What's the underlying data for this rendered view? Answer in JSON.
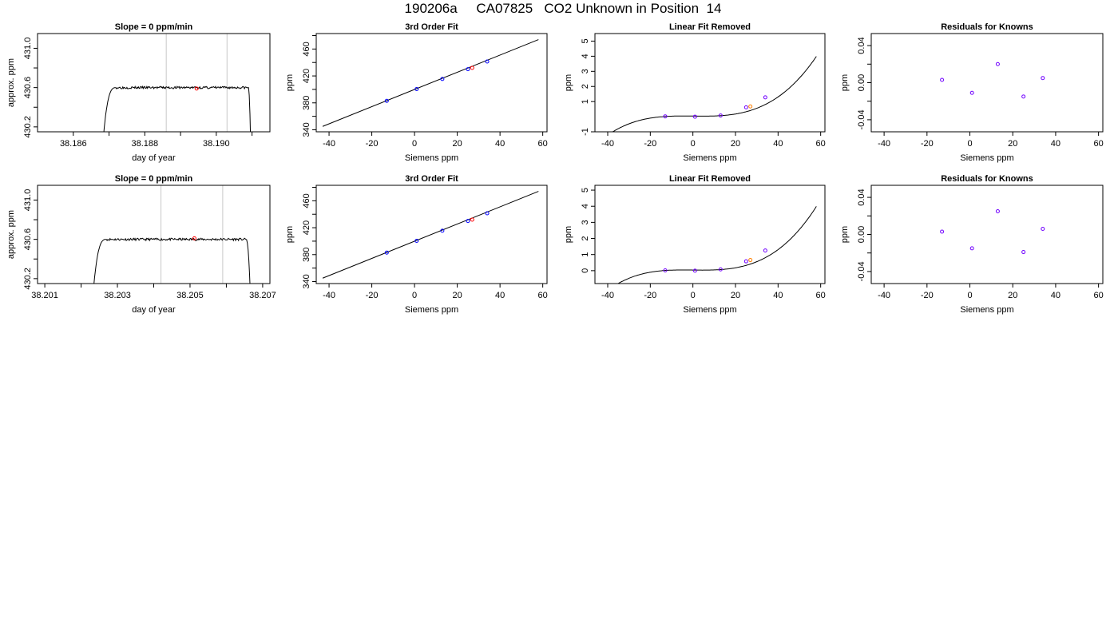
{
  "figure_title": "190206a     CA07825   CO2 Unknown in Position  14",
  "chart_data": [
    {
      "type": "line",
      "title": "Slope =  0  ppm/min",
      "xlabel": "day of year",
      "ylabel": "approx. ppm",
      "xlim": [
        38.185,
        38.1915
      ],
      "ylim": [
        430.15,
        431.15
      ],
      "xticks": [
        38.186,
        38.187,
        38.188,
        38.189,
        38.19,
        38.191
      ],
      "xtick_labels": [
        "38.186",
        "",
        "38.188",
        "",
        "38.190",
        ""
      ],
      "yticks": [
        430.2,
        430.4,
        430.6,
        430.8,
        431.0
      ],
      "ytick_labels": [
        "430.2",
        "",
        "430.6",
        "",
        "431.0"
      ],
      "vlines": [
        38.1886,
        38.1903
      ],
      "trace": {
        "rise_start": 38.18675,
        "plateau_start": 38.1872,
        "plateau_end": 38.1909,
        "end": 38.19098,
        "low": 429.6,
        "level": 430.6,
        "noise": 0.012,
        "seed": 3
      },
      "mean_point": {
        "x": 38.18945,
        "y": 430.59,
        "color": "#ff0000"
      }
    },
    {
      "type": "scatter",
      "title": "3rd Order Fit",
      "xlabel": "Siemens ppm",
      "ylabel": "ppm",
      "xlim": [
        -46,
        62
      ],
      "ylim": [
        337,
        483
      ],
      "xticks": [
        -40,
        -20,
        0,
        20,
        40,
        60
      ],
      "xtick_labels": [
        "-40",
        "-20",
        "0",
        "20",
        "40",
        "60"
      ],
      "yticks": [
        340,
        360,
        380,
        400,
        420,
        440,
        460,
        480
      ],
      "ytick_labels": [
        "340",
        "",
        "380",
        "",
        "420",
        "",
        "460",
        ""
      ],
      "line": {
        "x": [
          -43,
          58
        ],
        "y": [
          345,
          474
        ]
      },
      "points": [
        {
          "x": -13,
          "y": 383,
          "color": "#0000ff"
        },
        {
          "x": 1,
          "y": 400.5,
          "color": "#0000ff"
        },
        {
          "x": 13,
          "y": 415.5,
          "color": "#0000ff"
        },
        {
          "x": 25,
          "y": 430,
          "color": "#0000ff"
        },
        {
          "x": 27,
          "y": 432,
          "color": "#ff0000"
        },
        {
          "x": 34,
          "y": 441.5,
          "color": "#0000ff"
        }
      ]
    },
    {
      "type": "line",
      "title": "Linear Fit Removed",
      "xlabel": "Siemens ppm",
      "ylabel": "ppm",
      "xlim": [
        -46,
        62
      ],
      "ylim": [
        -1,
        5.5
      ],
      "xticks": [
        -40,
        -20,
        0,
        20,
        40,
        60
      ],
      "xtick_labels": [
        "-40",
        "-20",
        "0",
        "20",
        "40",
        "60"
      ],
      "yticks": [
        -1,
        1,
        2,
        3,
        4,
        5
      ],
      "ytick_labels": [
        "-1",
        "1",
        "2",
        "3",
        "4",
        "5"
      ],
      "curve": {
        "x0": -43,
        "x1": 58,
        "coeffs": [
          0.04,
          -0.0014,
          3.3e-06,
          2.06e-05
        ]
      },
      "points": [
        {
          "x": -13,
          "y": 0.02,
          "color": "#7000ff"
        },
        {
          "x": 1,
          "y": 0.0,
          "color": "#7000ff"
        },
        {
          "x": 13,
          "y": 0.08,
          "color": "#7000ff"
        },
        {
          "x": 25,
          "y": 0.62,
          "color": "#7000ff"
        },
        {
          "x": 27,
          "y": 0.68,
          "color": "#ff8000"
        },
        {
          "x": 34,
          "y": 1.28,
          "color": "#7000ff"
        }
      ]
    },
    {
      "type": "scatter",
      "title": "Residuals for Knowns",
      "xlabel": "Siemens ppm",
      "ylabel": "ppm",
      "xlim": [
        -46,
        62
      ],
      "ylim": [
        -0.053,
        0.053
      ],
      "xticks": [
        -40,
        -20,
        0,
        20,
        40,
        60
      ],
      "xtick_labels": [
        "-40",
        "-20",
        "0",
        "20",
        "40",
        "60"
      ],
      "yticks": [
        -0.04,
        -0.02,
        0.0,
        0.02,
        0.04
      ],
      "ytick_labels": [
        "-0.04",
        "",
        "0.00",
        "",
        "0.04"
      ],
      "points": [
        {
          "x": -13,
          "y": 0.003,
          "color": "#7000ff"
        },
        {
          "x": 1,
          "y": -0.011,
          "color": "#7000ff"
        },
        {
          "x": 13,
          "y": 0.02,
          "color": "#7000ff"
        },
        {
          "x": 25,
          "y": -0.015,
          "color": "#7000ff"
        },
        {
          "x": 34,
          "y": 0.005,
          "color": "#7000ff"
        }
      ]
    },
    {
      "type": "line",
      "title": "Slope =  0  ppm/min",
      "xlabel": "day of year",
      "ylabel": "approx. ppm",
      "xlim": [
        38.2008,
        38.2072
      ],
      "ylim": [
        430.15,
        431.15
      ],
      "xticks": [
        38.201,
        38.202,
        38.203,
        38.204,
        38.205,
        38.206,
        38.207
      ],
      "xtick_labels": [
        "38.201",
        "",
        "38.203",
        "",
        "38.205",
        "",
        "38.207"
      ],
      "yticks": [
        430.2,
        430.4,
        430.6,
        430.8,
        431.0
      ],
      "ytick_labels": [
        "430.2",
        "",
        "430.6",
        "",
        "431.0"
      ],
      "vlines": [
        38.2042,
        38.2059
      ],
      "trace": {
        "rise_start": 38.20225,
        "plateau_start": 38.2027,
        "plateau_end": 38.20655,
        "end": 38.2067,
        "low": 429.6,
        "level": 430.6,
        "noise": 0.012,
        "seed": 11
      },
      "mean_point": {
        "x": 38.20512,
        "y": 430.61,
        "color": "#ff0000"
      }
    },
    {
      "type": "scatter",
      "title": "3rd Order Fit",
      "xlabel": "Siemens ppm",
      "ylabel": "ppm",
      "xlim": [
        -46,
        62
      ],
      "ylim": [
        337,
        483
      ],
      "xticks": [
        -40,
        -20,
        0,
        20,
        40,
        60
      ],
      "xtick_labels": [
        "-40",
        "-20",
        "0",
        "20",
        "40",
        "60"
      ],
      "yticks": [
        340,
        360,
        380,
        400,
        420,
        440,
        460,
        480
      ],
      "ytick_labels": [
        "340",
        "",
        "380",
        "",
        "420",
        "",
        "460",
        ""
      ],
      "line": {
        "x": [
          -43,
          58
        ],
        "y": [
          345,
          474
        ]
      },
      "points": [
        {
          "x": -13,
          "y": 383,
          "color": "#0000ff"
        },
        {
          "x": 1,
          "y": 400.5,
          "color": "#0000ff"
        },
        {
          "x": 13,
          "y": 415.5,
          "color": "#0000ff"
        },
        {
          "x": 25,
          "y": 430,
          "color": "#0000ff"
        },
        {
          "x": 27,
          "y": 432,
          "color": "#ff0000"
        },
        {
          "x": 34,
          "y": 441.5,
          "color": "#0000ff"
        }
      ]
    },
    {
      "type": "line",
      "title": "Linear Fit Removed",
      "xlabel": "Siemens ppm",
      "ylabel": "ppm",
      "xlim": [
        -46,
        62
      ],
      "ylim": [
        -0.8,
        5.3
      ],
      "xticks": [
        -40,
        -20,
        0,
        20,
        40,
        60
      ],
      "xtick_labels": [
        "-40",
        "-20",
        "0",
        "20",
        "40",
        "60"
      ],
      "yticks": [
        0,
        1,
        2,
        3,
        4,
        5
      ],
      "ytick_labels": [
        "0",
        "1",
        "2",
        "3",
        "4",
        "5"
      ],
      "curve": {
        "x0": -43,
        "x1": 58,
        "coeffs": [
          0.04,
          -0.0014,
          3.3e-06,
          2.06e-05
        ]
      },
      "points": [
        {
          "x": -13,
          "y": 0.02,
          "color": "#7000ff"
        },
        {
          "x": 1,
          "y": 0.0,
          "color": "#7000ff"
        },
        {
          "x": 13,
          "y": 0.08,
          "color": "#7000ff"
        },
        {
          "x": 25,
          "y": 0.58,
          "color": "#7000ff"
        },
        {
          "x": 27,
          "y": 0.66,
          "color": "#ff8000"
        },
        {
          "x": 34,
          "y": 1.25,
          "color": "#7000ff"
        }
      ]
    },
    {
      "type": "scatter",
      "title": "Residuals for Knowns",
      "xlabel": "Siemens ppm",
      "ylabel": "ppm",
      "xlim": [
        -46,
        62
      ],
      "ylim": [
        -0.053,
        0.053
      ],
      "xticks": [
        -40,
        -20,
        0,
        20,
        40,
        60
      ],
      "xtick_labels": [
        "-40",
        "-20",
        "0",
        "20",
        "40",
        "60"
      ],
      "yticks": [
        -0.04,
        -0.02,
        0.0,
        0.02,
        0.04
      ],
      "ytick_labels": [
        "-0.04",
        "",
        "0.00",
        "",
        "0.04"
      ],
      "points": [
        {
          "x": -13,
          "y": 0.003,
          "color": "#7000ff"
        },
        {
          "x": 1,
          "y": -0.015,
          "color": "#7000ff"
        },
        {
          "x": 13,
          "y": 0.025,
          "color": "#7000ff"
        },
        {
          "x": 25,
          "y": -0.019,
          "color": "#7000ff"
        },
        {
          "x": 34,
          "y": 0.006,
          "color": "#7000ff"
        }
      ]
    }
  ]
}
